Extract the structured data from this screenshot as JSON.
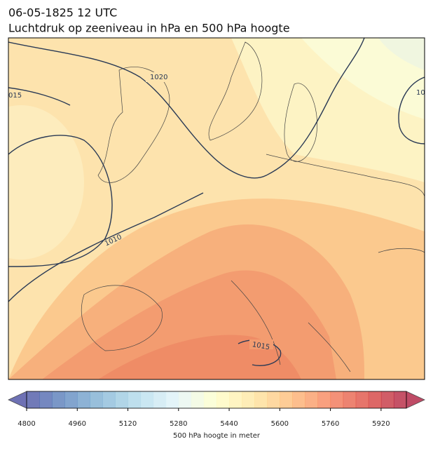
{
  "title": "06-05-1825 12 UTC",
  "subtitle": "Luchtdruk op zeeniveau in hPa en 500 hPa hoogte",
  "contour_labels": [
    "1020",
    "015",
    "1010",
    "1015",
    "10"
  ],
  "colorbar": {
    "label": "500 hPa hoogte in meter",
    "lim": [
      4800,
      6000
    ],
    "ticks": [
      4800,
      4960,
      5120,
      5280,
      5440,
      5600,
      5760,
      5920
    ],
    "colormap": "RdYlBu_r"
  }
}
